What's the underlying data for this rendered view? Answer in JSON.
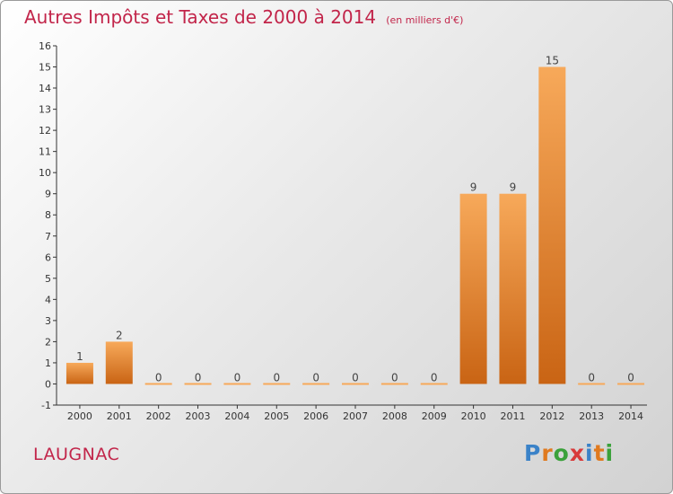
{
  "header": {
    "title": "Autres Impôts et Taxes de 2000 à 2014",
    "subtitle": "(en milliers d'€)"
  },
  "footer": {
    "commune": "LAUGNAC",
    "brand": "Proxiti"
  },
  "colors": {
    "title": "#c2254a",
    "bar_light": "#f7a95a",
    "bar_dark": "#c96414",
    "axis": "#333333"
  },
  "chart_data": {
    "type": "bar",
    "title": "Autres Impôts et Taxes de 2000 à 2014",
    "subtitle": "(en milliers d'€)",
    "xlabel": "",
    "ylabel": "",
    "categories": [
      "2000",
      "2001",
      "2002",
      "2003",
      "2004",
      "2005",
      "2006",
      "2007",
      "2008",
      "2009",
      "2010",
      "2011",
      "2012",
      "2013",
      "2014"
    ],
    "values": [
      1,
      2,
      0,
      0,
      0,
      0,
      0,
      0,
      0,
      0,
      9,
      9,
      15,
      0,
      0
    ],
    "ylim": [
      -1,
      16
    ],
    "yticks": [
      -1,
      0,
      1,
      2,
      3,
      4,
      5,
      6,
      7,
      8,
      9,
      10,
      11,
      12,
      13,
      14,
      15,
      16
    ],
    "grid": false,
    "data_labels": true
  }
}
